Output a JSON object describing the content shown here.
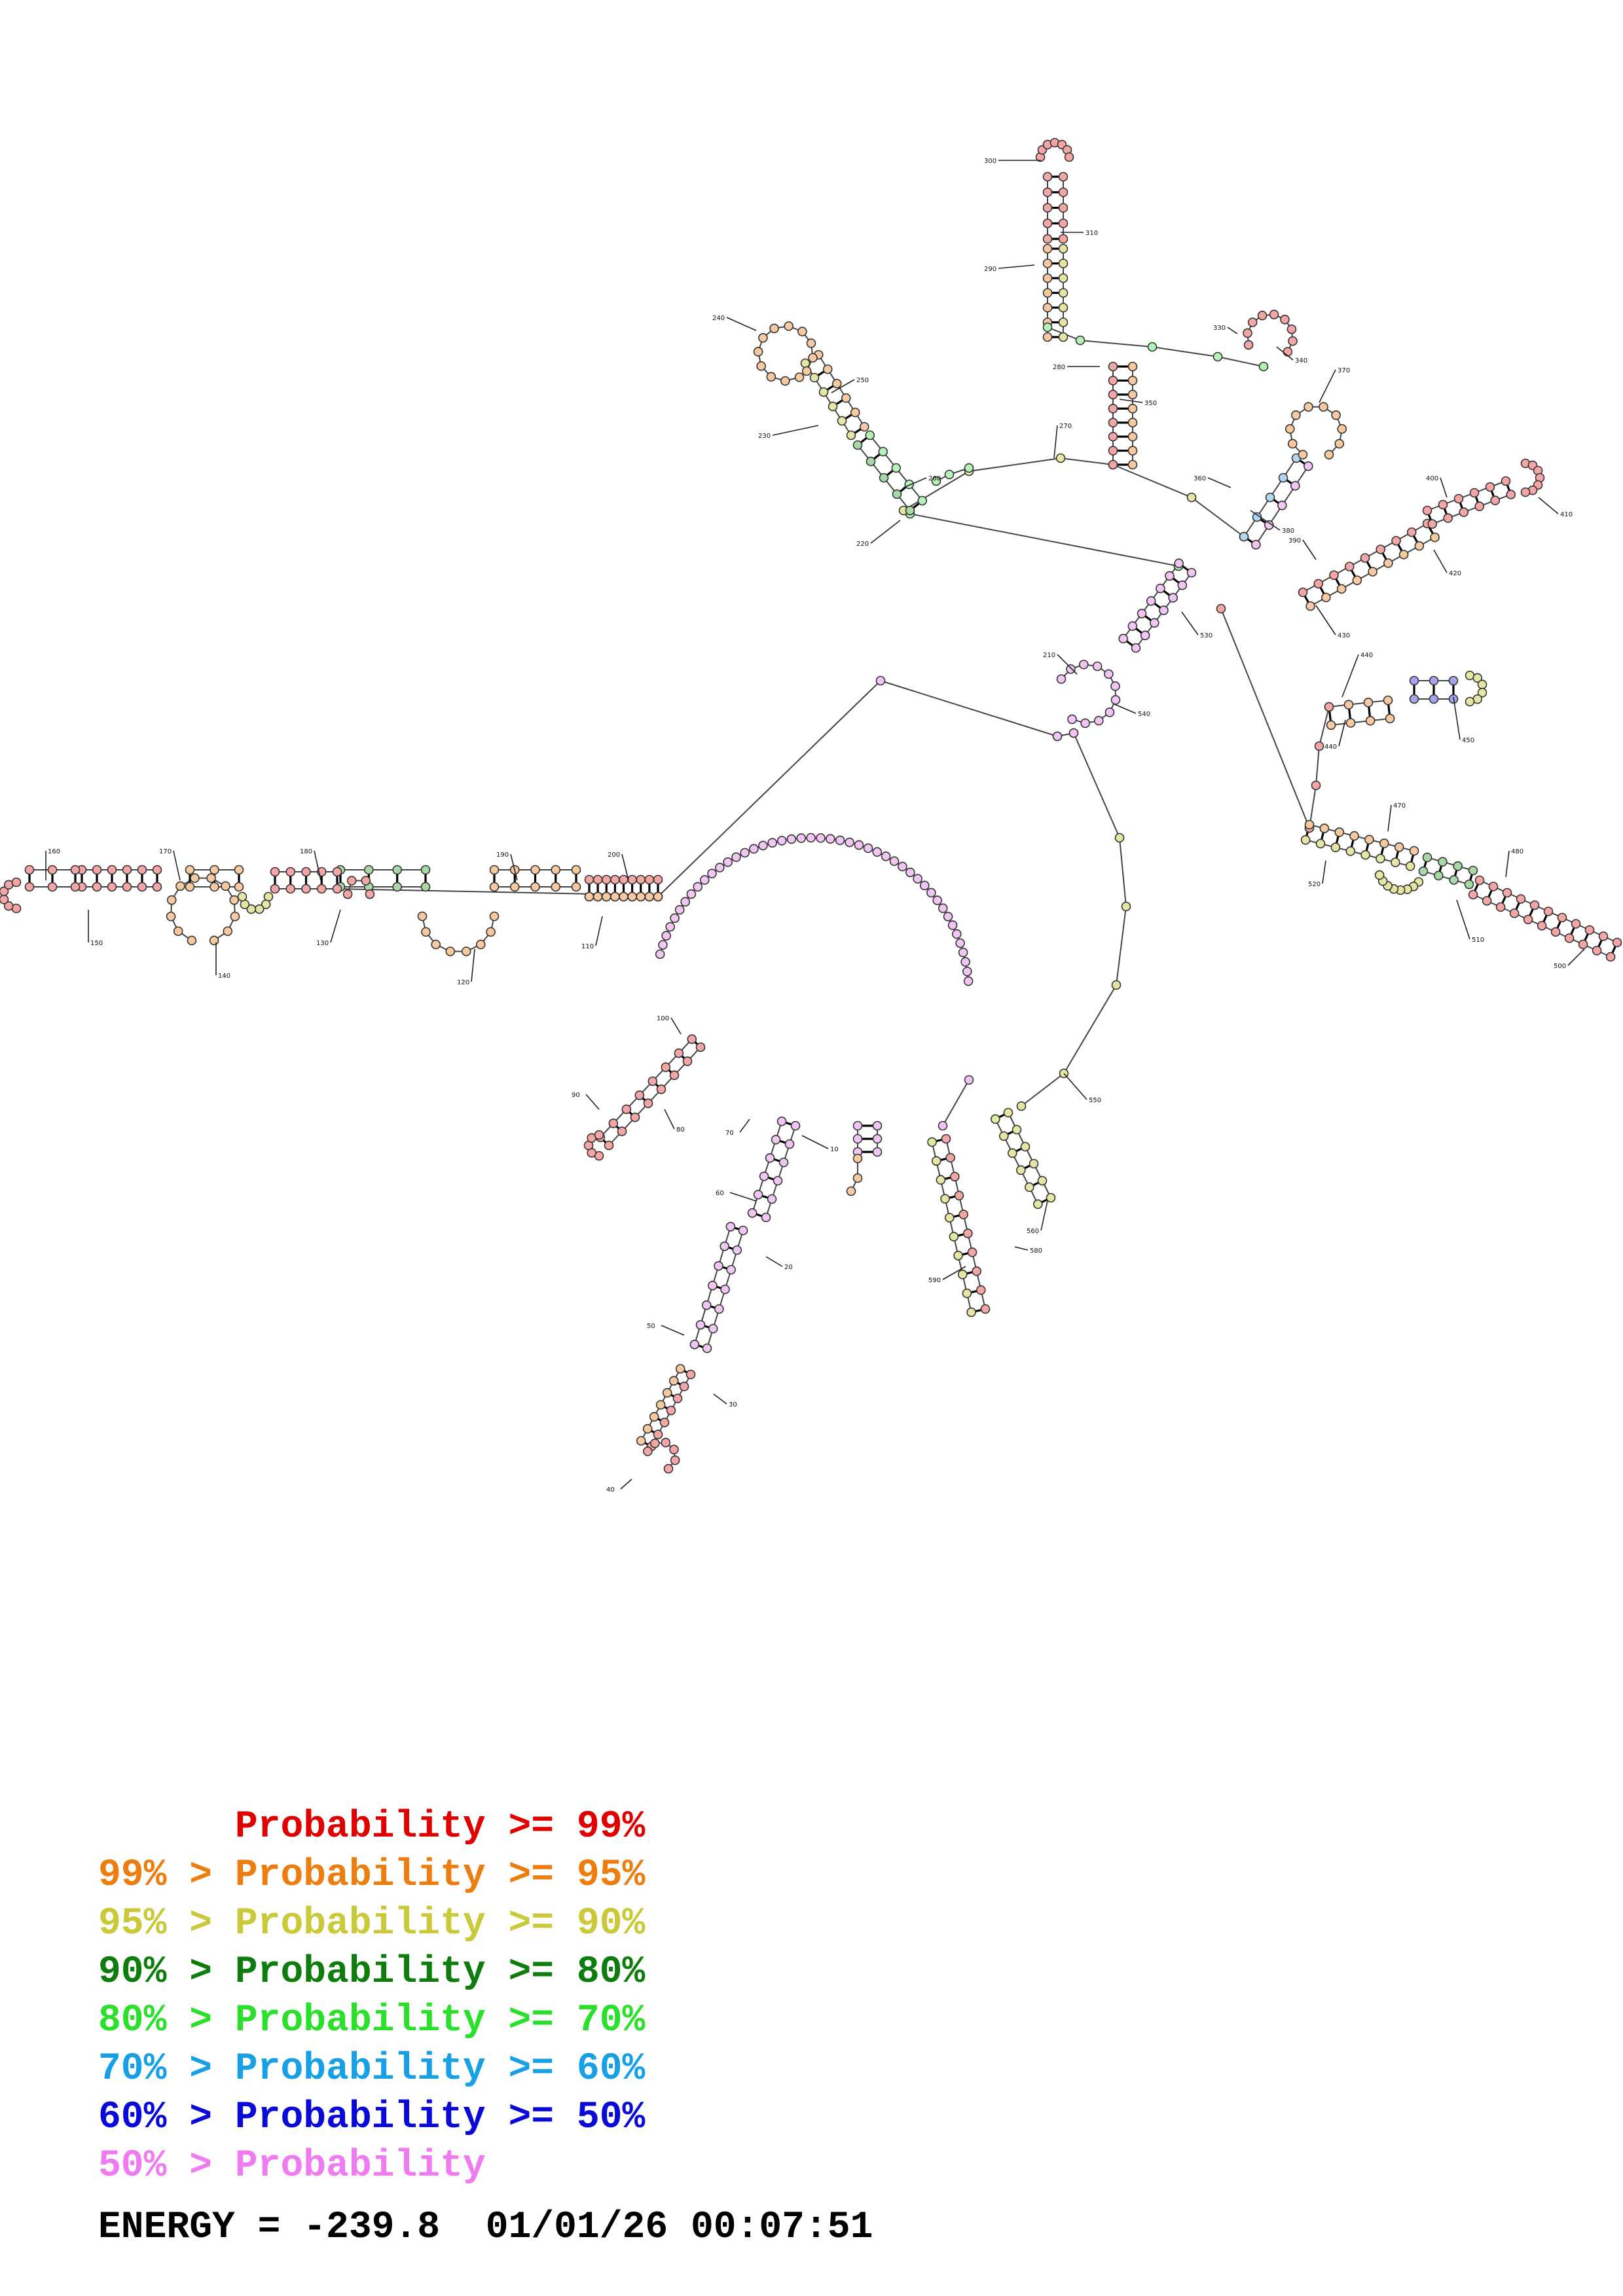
{
  "legend": [
    {
      "text": "      Probability >= 99%",
      "color": "#e10000"
    },
    {
      "text": "99% > Probability >= 95%",
      "color": "#ee7d0f"
    },
    {
      "text": "95% > Probability >= 90%",
      "color": "#c9c93a"
    },
    {
      "text": "90% > Probability >= 80%",
      "color": "#0e7d0e"
    },
    {
      "text": "80% > Probability >= 70%",
      "color": "#2ae02a"
    },
    {
      "text": "70% > Probability >= 60%",
      "color": "#17a0e6"
    },
    {
      "text": "60% > Probability >= 50%",
      "color": "#0a0ad8"
    },
    {
      "text": "50% > Probability",
      "color": "#f07af0"
    }
  ],
  "energy_line": "ENERGY = -239.8  01/01/26 00:07:51",
  "position_labels": [
    "10",
    "20",
    "30",
    "40",
    "50",
    "60",
    "70",
    "80",
    "90",
    "100",
    "110",
    "120",
    "130",
    "140",
    "150",
    "160",
    "170",
    "180",
    "190",
    "200",
    "210",
    "220",
    "230",
    "240",
    "250",
    "260",
    "270",
    "280",
    "290",
    "300",
    "310",
    "330",
    "340",
    "350",
    "360",
    "370",
    "380",
    "390",
    "400",
    "410",
    "420",
    "430",
    "440",
    "440",
    "450",
    "470",
    "480",
    "500",
    "510",
    "520",
    "530",
    "540",
    "550",
    "560",
    "580",
    "590"
  ],
  "nucleotide_fills": {
    "p99": "#f4a6a6",
    "p95": "#f6c9a0",
    "p90": "#e6e6a4",
    "p80": "#a8d8a8",
    "p70": "#b6f2b6",
    "p60": "#aed8f2",
    "p50": "#a4a4ee",
    "p_low": "#f2c6f2"
  }
}
